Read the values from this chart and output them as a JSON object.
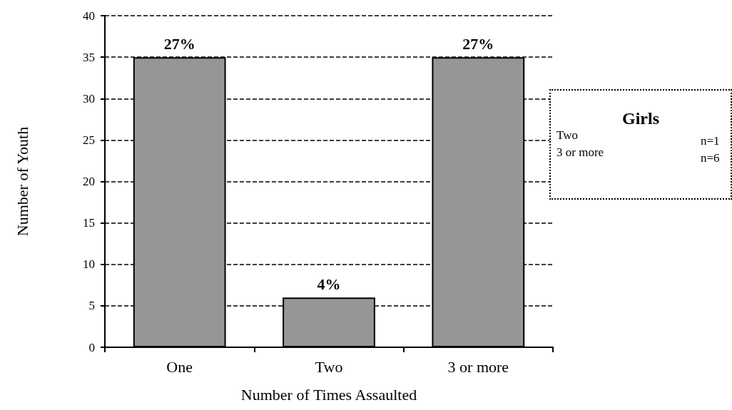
{
  "chart_data": {
    "type": "bar",
    "xlabel": "Number of Times Assaulted",
    "ylabel": "Number of Youth",
    "categories": [
      "One",
      "Two",
      "3 or more"
    ],
    "values": [
      35,
      6,
      35
    ],
    "color": "#969696",
    "ylim": [
      0,
      40
    ],
    "yticks": [
      0,
      5,
      10,
      15,
      20,
      25,
      30,
      35,
      40
    ],
    "grid": "y",
    "line_style": "dashed",
    "annotations": [
      {
        "text": "27%",
        "x": "One",
        "y": 35
      },
      {
        "text": "4%",
        "x": "Two",
        "y": 6
      },
      {
        "text": "27%",
        "x": "3 or more",
        "y": 35
      },
      "Girls",
      "Two",
      "n=1",
      "3 or more",
      "n=6"
    ]
  }
}
